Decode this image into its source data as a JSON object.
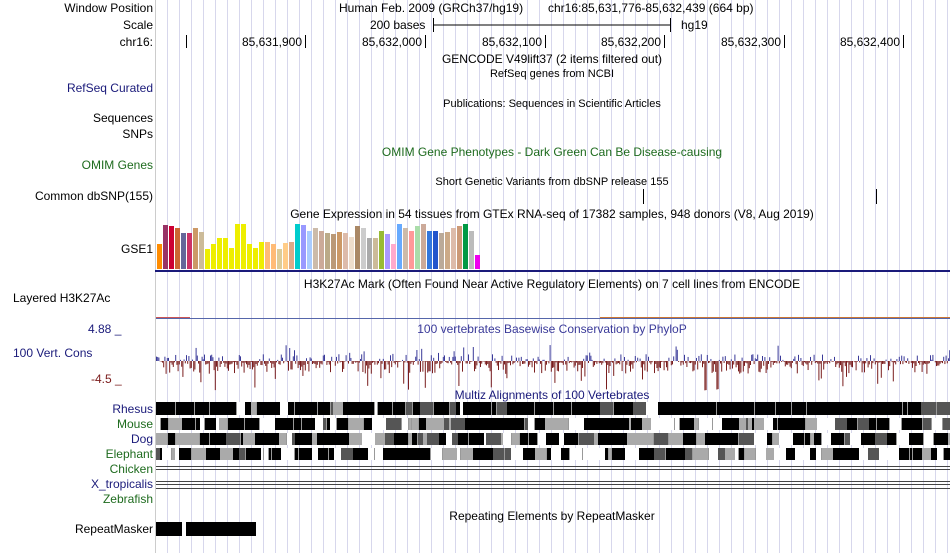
{
  "labels": {
    "window_position": "Window Position",
    "scale": "Scale",
    "chrom": "chr16:",
    "refseq": "RefSeq Curated",
    "sequences": "Sequences",
    "snps": "SNPs",
    "omim": "OMIM Genes",
    "common_dbsnp": "Common dbSNP(155)",
    "gse1": "GSE1",
    "h3k27ac": "Layered H3K27Ac",
    "cons_max": "4.88 _",
    "cons_label": "100 Vert. Cons",
    "cons_min": "-4.5 _",
    "species": [
      "Rhesus",
      "Mouse",
      "Dog",
      "Elephant",
      "Chicken",
      "X_tropicalis",
      "Zebrafish"
    ],
    "repeatmasker": "RepeatMasker"
  },
  "header": {
    "assembly": "Human Feb. 2009 (GRCh37/hg19)",
    "position": "chr16:85,631,776-85,632,439 (664 bp)",
    "scale_text": "200 bases",
    "scale_db": "hg19"
  },
  "ruler": {
    "ticks": [
      "85,631,900",
      "85,632,000",
      "85,632,100",
      "85,632,200",
      "85,632,300",
      "85,632,400"
    ]
  },
  "tracks": {
    "gencode": "GENCODE V49lift37 (2 items filtered out)",
    "refseq": "RefSeq genes from NCBI",
    "publications": "Publications: Sequences in Scientific Articles",
    "omim": "OMIM Gene Phenotypes - Dark Green Can Be Disease-causing",
    "dbsnp": "Short Genetic Variants from dbSNP release 155",
    "gtex": "Gene Expression in 54 tissues from GTEx RNA-seq of 17382 samples, 948 donors (V8, Aug 2019)",
    "h3k27ac": "H3K27Ac Mark (Often Found Near Active Regulatory Elements) on 7 cell lines from ENCODE",
    "phylop": "100 vertebrates Basewise Conservation by PhyloP",
    "multiz": "Multiz Alignments of 100 Vertebrates",
    "repeats": "Repeating Elements by RepeatMasker"
  },
  "gtex": {
    "values": [
      0.55,
      0.97,
      0.95,
      0.9,
      0.8,
      0.8,
      0.92,
      0.82,
      0.45,
      0.55,
      0.7,
      0.7,
      0.47,
      1.0,
      1.0,
      0.55,
      0.47,
      0.6,
      0.6,
      0.55,
      0.45,
      0.58,
      0.6,
      1.0,
      0.97,
      0.85,
      0.9,
      0.85,
      0.8,
      0.78,
      0.82,
      0.8,
      0.72,
      0.95,
      0.9,
      0.7,
      0.68,
      0.85,
      0.78,
      0.55,
      1.0,
      0.92,
      0.85,
      0.95,
      1.0,
      0.85,
      0.85,
      0.8,
      0.82,
      0.9,
      0.95,
      1.0,
      0.85,
      0.3
    ],
    "colors": [
      "#ff8c00",
      "#993366",
      "#cc0033",
      "#cc6633",
      "#666699",
      "#cc3366",
      "#cc9966",
      "#ccbb99",
      "#eeee00",
      "#eeee00",
      "#eeee00",
      "#eeee00",
      "#eeee00",
      "#eeee00",
      "#eeee00",
      "#eeee00",
      "#eeee00",
      "#eeee00",
      "#ffbb77",
      "#ffbb77",
      "#ddcc99",
      "#ffcc88",
      "#ddaa88",
      "#00cccc",
      "#9999ff",
      "#aaccff",
      "#ccbbaa",
      "#ccaa99",
      "#bbaa88",
      "#bb9977",
      "#cc9966",
      "#ddbbaa",
      "#eeddcc",
      "#aa8866",
      "#cccccc",
      "#aaaaaa",
      "#ccbb99",
      "#99bb33",
      "#aa99ff",
      "#ffaacc",
      "#66aaff",
      "#ccbbaa",
      "#ff9999",
      "#aaddaa",
      "#ccaa99",
      "#3377dd",
      "#2255cc",
      "#bbaa99",
      "#ccaa88",
      "#ddbbaa",
      "#cc9977",
      "#009944",
      "#bbbbbb",
      "#ee00ee"
    ]
  },
  "colors": {
    "navy": "#1a1a7a",
    "green": "#1e6b1e",
    "maroon": "#8b2a2a",
    "cons_pos": "#3a3a99",
    "cons_neg": "#7a1e1e"
  }
}
